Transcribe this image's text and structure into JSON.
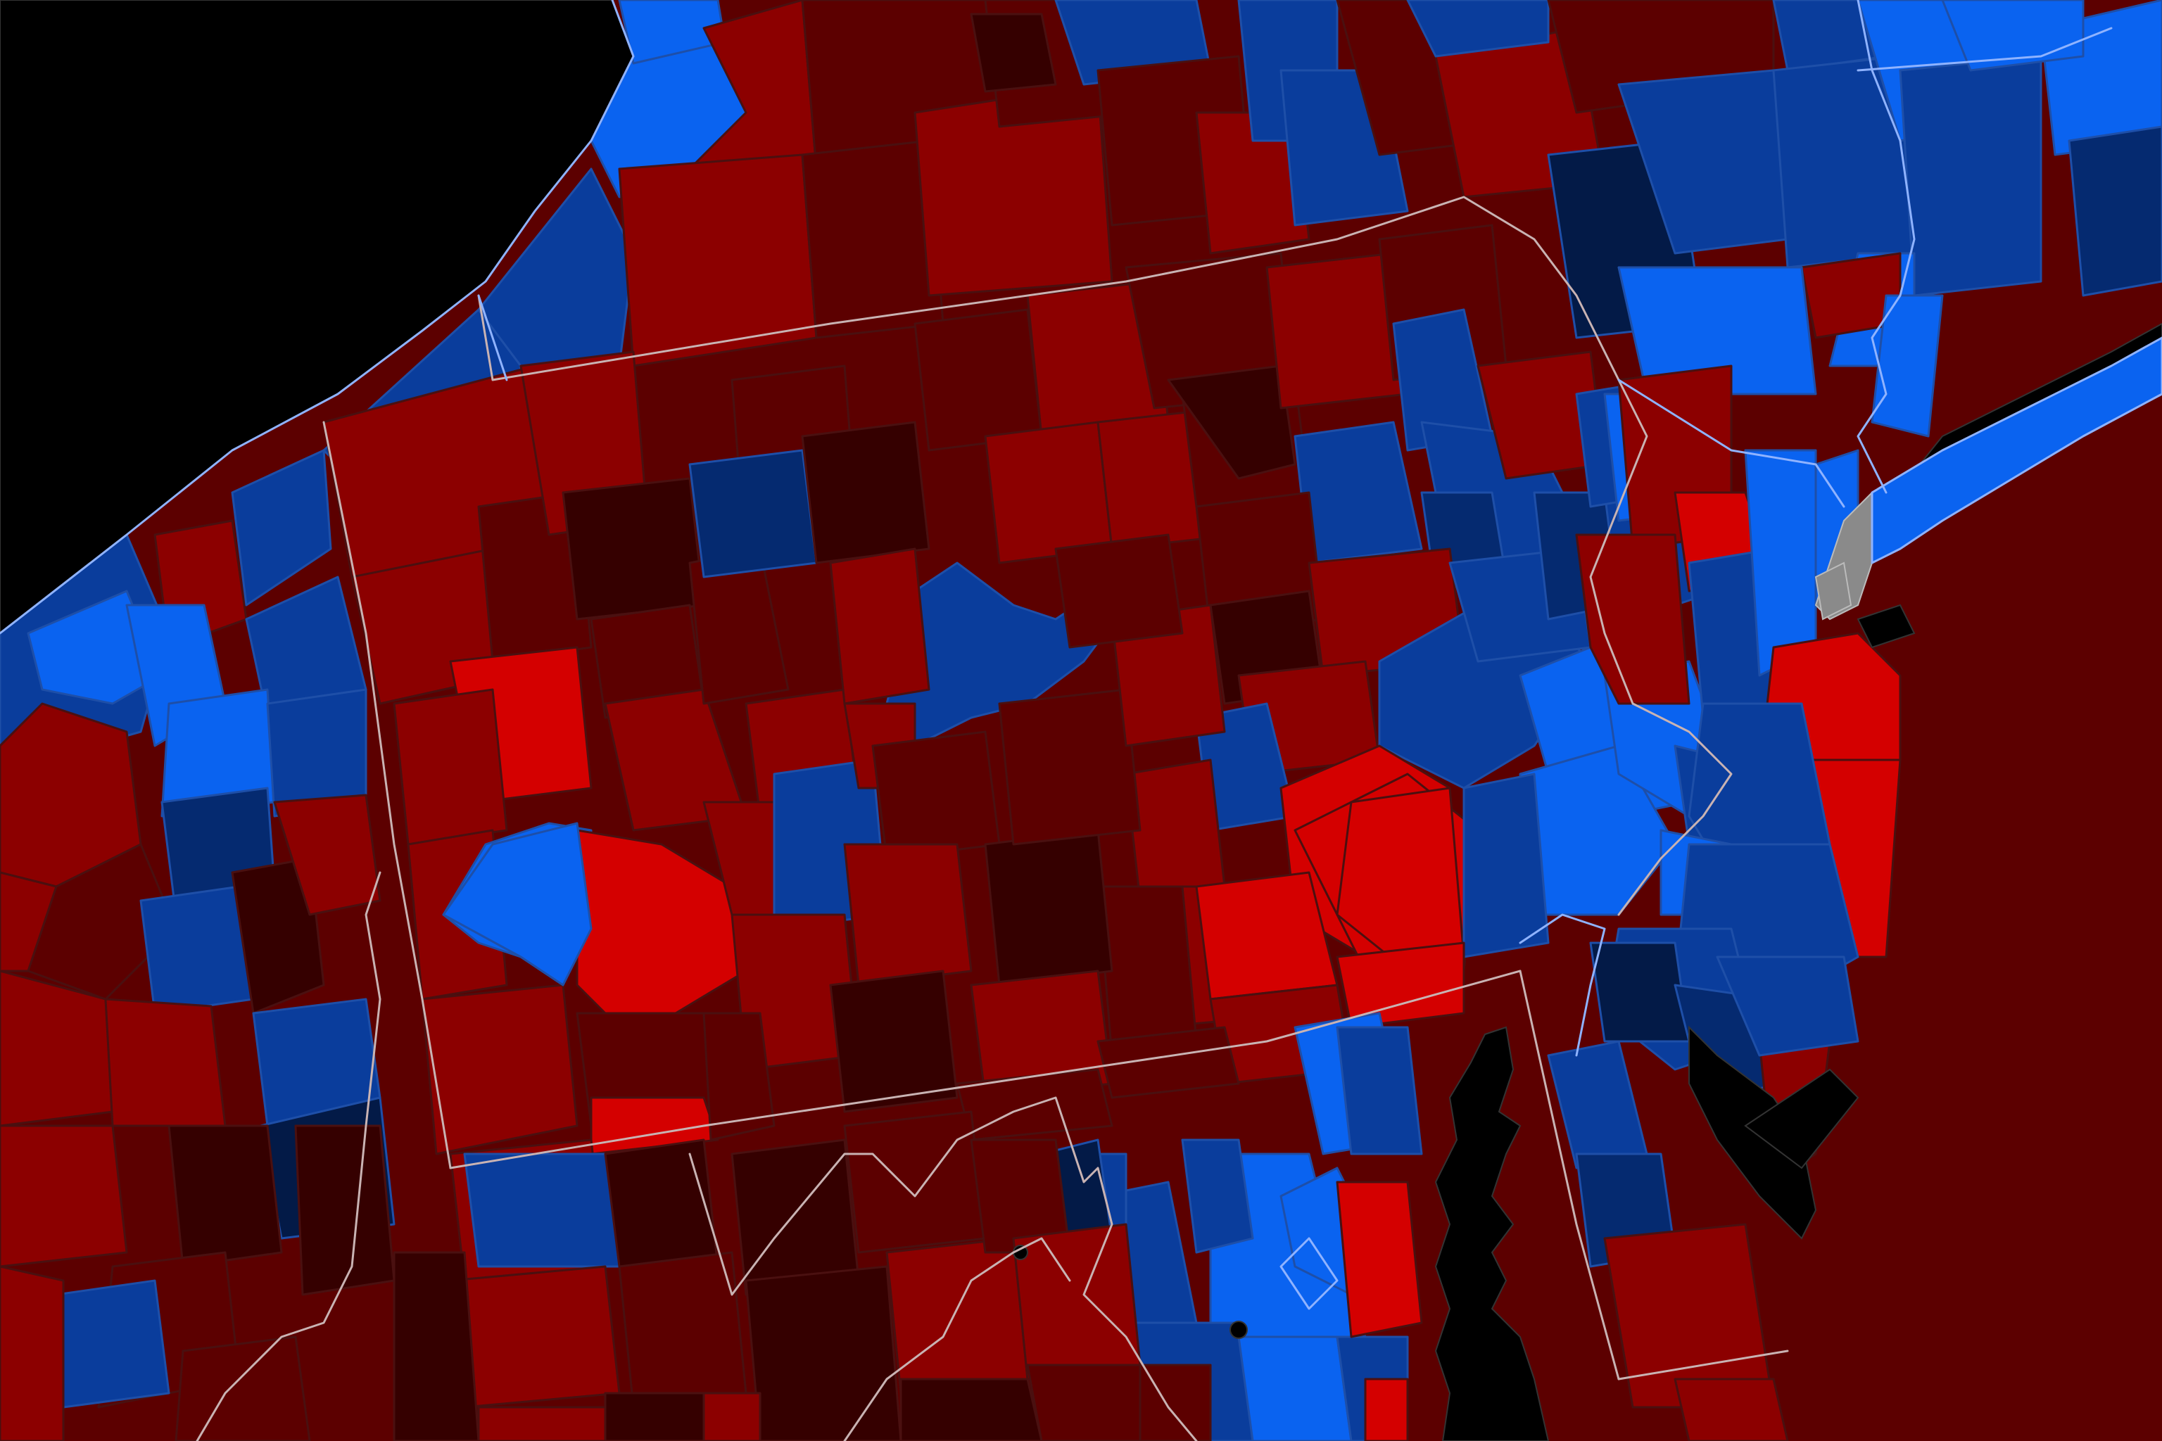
{
  "map": {
    "legend": {
      "strong_dem": "#0a63f0",
      "lean_dem": "#0a3d9c",
      "likely_dem": "#052a70",
      "safe_dem_dark": "#031a47",
      "strong_rep": "#d40000",
      "likely_rep": "#8c0000",
      "lean_rep": "#5c0000",
      "safe_rep_dark": "#350000",
      "no_data": "#8a8a8a",
      "water": "#000000"
    },
    "state_border_color": "#c9b3b3",
    "state_border_color_blue": "#8fb3ff"
  }
}
